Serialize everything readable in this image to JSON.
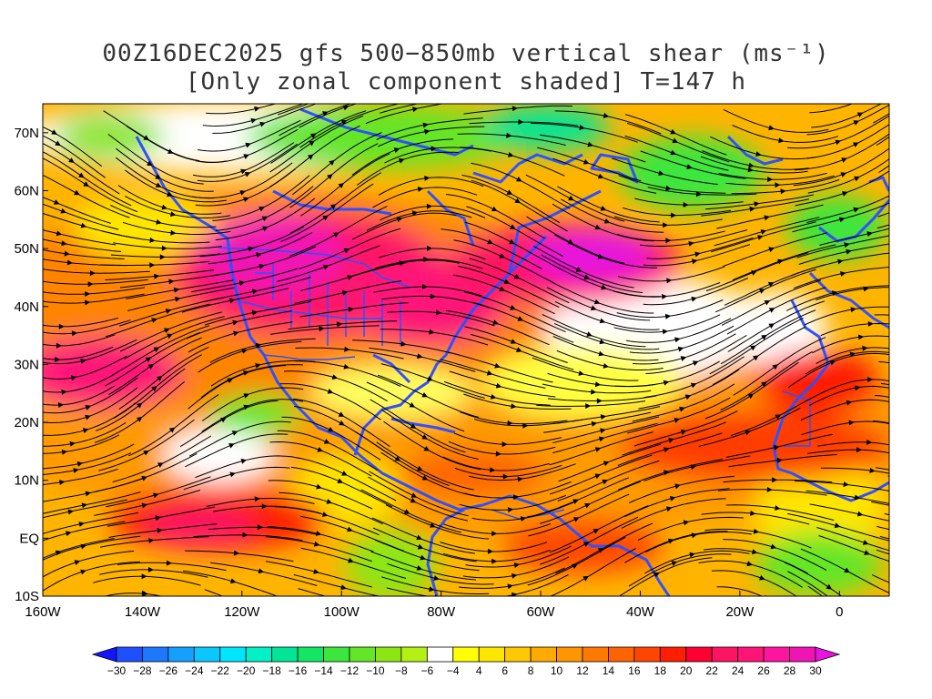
{
  "title": {
    "line1": "00Z16DEC2025 gfs 500−850mb vertical shear (ms⁻¹)",
    "line2": "[Only zonal component shaded] T=147 h"
  },
  "axes": {
    "lat_labels": [
      "70N",
      "60N",
      "50N",
      "40N",
      "30N",
      "20N",
      "10N",
      "EQ",
      "10S"
    ],
    "lat_values": [
      70,
      60,
      50,
      40,
      30,
      20,
      10,
      0,
      -10
    ],
    "lon_labels": [
      "160W",
      "140W",
      "120W",
      "100W",
      "80W",
      "60W",
      "40W",
      "20W",
      "0"
    ],
    "lon_values": [
      -160,
      -140,
      -120,
      -100,
      -80,
      -60,
      -40,
      -20,
      0
    ],
    "lon_range": [
      -160,
      10
    ],
    "lat_range": [
      -10,
      75
    ]
  },
  "colorbar": {
    "labels": [
      "−30",
      "−28",
      "−26",
      "−24",
      "−22",
      "−20",
      "−18",
      "−16",
      "−14",
      "−12",
      "−10",
      "−8",
      "−6",
      "−4",
      "4",
      "6",
      "8",
      "10",
      "12",
      "14",
      "16",
      "18",
      "20",
      "22",
      "24",
      "26",
      "28",
      "30"
    ],
    "values": [
      -30,
      -28,
      -26,
      -24,
      -22,
      -20,
      -18,
      -16,
      -14,
      -12,
      -10,
      -8,
      -6,
      -4,
      4,
      6,
      8,
      10,
      12,
      14,
      16,
      18,
      20,
      22,
      24,
      26,
      28,
      30
    ],
    "colors": [
      "#1414ff",
      "#1e50ff",
      "#1e78ff",
      "#14a0ff",
      "#0ac8ff",
      "#00e6ff",
      "#00f0c8",
      "#00e696",
      "#14e664",
      "#3ce63c",
      "#64e628",
      "#8ce614",
      "#b4f014",
      "#ffffff",
      "#ffff00",
      "#ffe600",
      "#ffc800",
      "#ffaa00",
      "#ff9600",
      "#ff7800",
      "#ff6400",
      "#ff4600",
      "#ff1e00",
      "#ff0032",
      "#ff1464",
      "#ff1478",
      "#ff14a0",
      "#f014b4",
      "#e614dc"
    ]
  },
  "map_style": {
    "coastline_color": "#3050ff",
    "streamline_color": "#000000"
  }
}
